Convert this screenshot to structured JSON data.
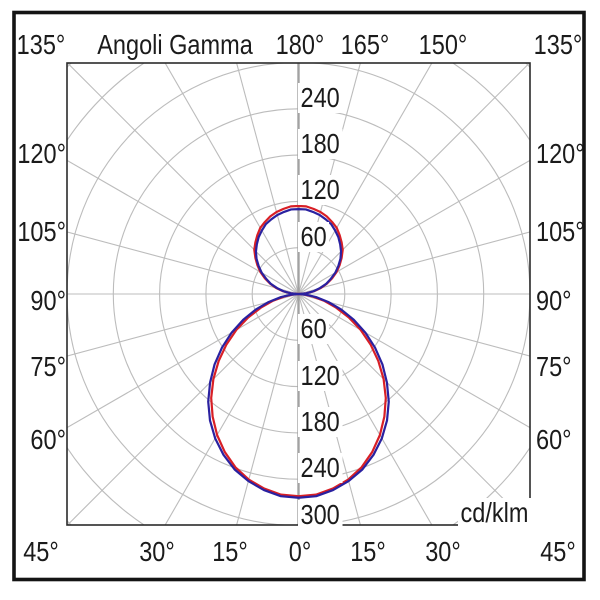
{
  "title": "Angoli Gamma",
  "unit": "cd/klm",
  "labels": {
    "title": "Angoli Gamma",
    "top": [
      "135°",
      "180°",
      "165°",
      "150°",
      "135°"
    ],
    "bottom": [
      "45°",
      "30°",
      "15°",
      "0°",
      "15°",
      "30°",
      "45°"
    ],
    "left": [
      "120°",
      "105°",
      "90°",
      "75°",
      "60°"
    ],
    "right": [
      "120°",
      "105°",
      "90°",
      "75°",
      "60°"
    ],
    "radial_up": [
      "240",
      "180",
      "120",
      "60"
    ],
    "radial_down": [
      "60",
      "120",
      "180",
      "240",
      "300"
    ],
    "unit": "cd/klm"
  },
  "style": {
    "background": "#ffffff",
    "grid_color": "#bcbcbc",
    "axis_color": "#a2a2a2",
    "frame_color": "#141414",
    "border_color": "#2b2b2b",
    "text_color": "#1b1b1b",
    "series_red": "#d81f26",
    "series_blue": "#2a21a0"
  },
  "chart_data": {
    "type": "polar",
    "title": "Angoli Gamma",
    "units": "cd/klm",
    "angle_convention": "gamma 0 = straight down (nadir), 180 = straight up, symmetric left/right",
    "gamma_deg_start": 0,
    "gamma_deg_step": 5,
    "radial_ticks": [
      60,
      120,
      180,
      240,
      300
    ],
    "radial_max_displayed": 300,
    "grid_circles": [
      60,
      120,
      180,
      240,
      300,
      360,
      420
    ],
    "spoke_step_deg": 15,
    "boundary_angle_labels_deg": [
      135,
      180,
      165,
      150,
      135,
      120,
      105,
      90,
      75,
      60,
      45,
      30,
      15,
      0
    ],
    "series": [
      {
        "name": "curve-red",
        "color": "#d81f26",
        "values": [
          262,
          261,
          256,
          249,
          239,
          226,
          211,
          194,
          176,
          156,
          135,
          114,
          93,
          72,
          52,
          35,
          19,
          7,
          0,
          10,
          20,
          30,
          39,
          48,
          57,
          65,
          73,
          81,
          87,
          93,
          99,
          103,
          107,
          110,
          112,
          114,
          114
        ]
      },
      {
        "name": "curve-blue",
        "color": "#2a21a0",
        "values": [
          264,
          263,
          258,
          251,
          242,
          230,
          216,
          200,
          182,
          162,
          142,
          121,
          100,
          79,
          59,
          40,
          23,
          9,
          0,
          10,
          19,
          28,
          38,
          46,
          55,
          63,
          71,
          78,
          84,
          90,
          95,
          100,
          103,
          106,
          108,
          110,
          110
        ]
      }
    ]
  }
}
